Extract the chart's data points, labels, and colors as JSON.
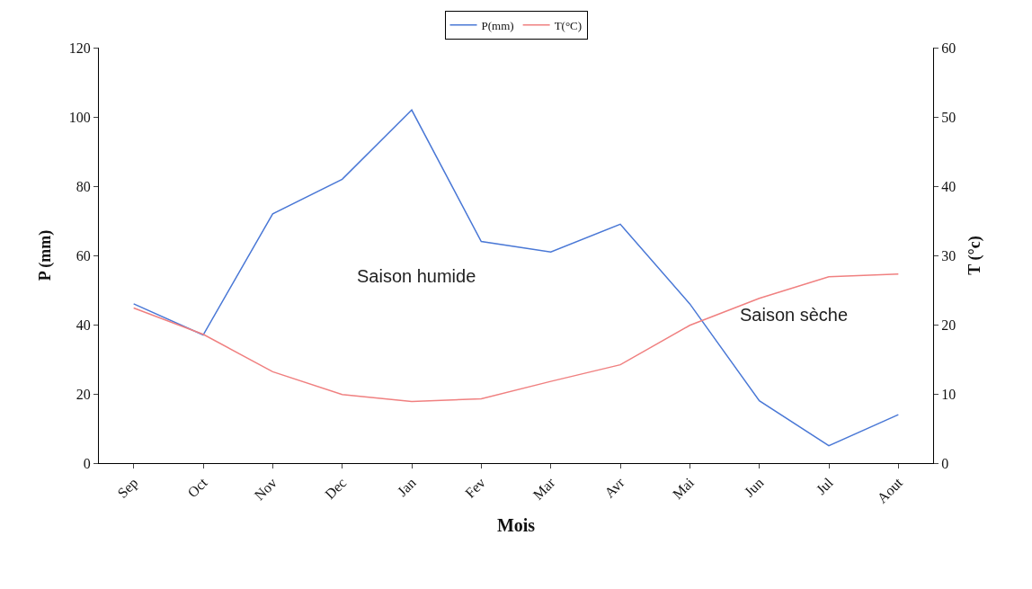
{
  "chart_data": {
    "type": "line",
    "xlabel": "Mois",
    "ylabel": "P (mm)",
    "y2label": "T (°c)",
    "categories": [
      "Sep",
      "Oct",
      "Nov",
      "Dec",
      "Jan",
      "Fev",
      "Mar",
      "Avr",
      "Mai",
      "Jun",
      "Jul",
      "Aout"
    ],
    "series": [
      {
        "name": "P(mm)",
        "color": "#4a78d6",
        "values": [
          46,
          37,
          72,
          82,
          102,
          64,
          61,
          69,
          46,
          18,
          5,
          14
        ]
      },
      {
        "name": "T(°C)",
        "color": "#f08080",
        "axis": "y2",
        "values": [
          22.4,
          18.6,
          13.2,
          9.9,
          8.9,
          9.3,
          11.8,
          14.2,
          19.9,
          23.8,
          26.9,
          27.3
        ]
      }
    ],
    "ylim": [
      0,
      120
    ],
    "yticks": [
      0,
      20,
      40,
      60,
      80,
      100,
      120
    ],
    "y2lim": [
      0,
      60
    ],
    "y2ticks": [
      0,
      10,
      20,
      30,
      40,
      50,
      60
    ],
    "annotations": [
      "Saison humide",
      "Saison sèche"
    ],
    "legend": "top",
    "marker": "none",
    "line_style": "solid"
  }
}
